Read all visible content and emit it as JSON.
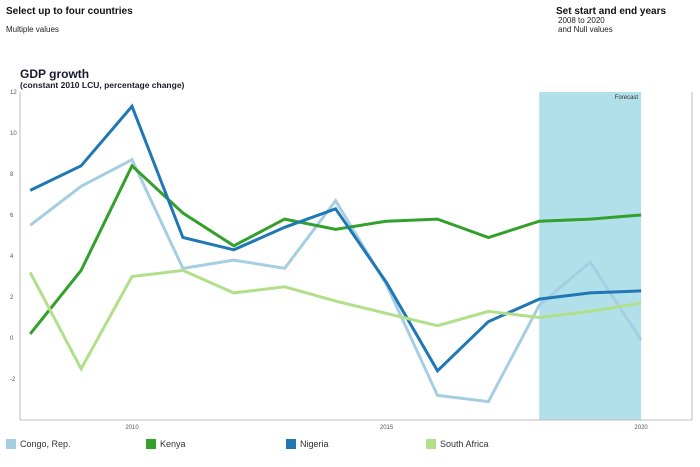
{
  "filters": {
    "countries": {
      "title": "Select up to four countries",
      "value": "Multiple values"
    },
    "years": {
      "title": "Set start and end years",
      "value_line1": "2008 to 2020",
      "value_line2": "and Null values"
    }
  },
  "colors": {
    "congo": "#a6cee3",
    "kenya": "#33a02c",
    "nigeria": "#1f78b4",
    "south_africa": "#b2df8a",
    "forecast": "#b2e0ea",
    "axis": "#bbbbbb",
    "tick_text": "#555555"
  },
  "chart_data": {
    "type": "line",
    "title": "GDP growth",
    "subtitle": "(constant 2010 LCU, percentage change)",
    "xlabel": "",
    "ylabel": "",
    "x": [
      2008,
      2009,
      2010,
      2011,
      2012,
      2013,
      2014,
      2015,
      2016,
      2017,
      2018,
      2019,
      2020
    ],
    "xlim": [
      2007.8,
      2021
    ],
    "ylim": [
      -4,
      12
    ],
    "y_ticks": [
      12,
      10,
      8,
      6,
      4,
      2,
      0,
      -2
    ],
    "y_tick_labels": [
      "12",
      "10",
      "8",
      "6",
      "4",
      "2",
      "0",
      "-2"
    ],
    "x_ticks": [
      2010,
      2015,
      2020
    ],
    "x_tick_labels": [
      "2010",
      "2015",
      "2020"
    ],
    "forecast": {
      "label": "Forecast",
      "start": 2018,
      "end": 2020
    },
    "series": [
      {
        "key": "congo",
        "name": "Congo, Rep.",
        "values": [
          5.5,
          7.4,
          8.7,
          3.4,
          3.8,
          3.4,
          6.7,
          2.6,
          -2.8,
          -3.1,
          1.6,
          3.7,
          -0.1
        ]
      },
      {
        "key": "kenya",
        "name": "Kenya",
        "values": [
          0.2,
          3.3,
          8.4,
          6.1,
          4.5,
          5.8,
          5.3,
          5.7,
          5.8,
          4.9,
          5.7,
          5.8,
          6.0
        ]
      },
      {
        "key": "nigeria",
        "name": "Nigeria",
        "values": [
          7.2,
          8.4,
          11.3,
          4.9,
          4.3,
          5.4,
          6.3,
          2.7,
          -1.6,
          0.8,
          1.9,
          2.2,
          2.3
        ]
      },
      {
        "key": "south_africa",
        "name": "South Africa",
        "values": [
          3.2,
          -1.5,
          3.0,
          3.3,
          2.2,
          2.5,
          1.8,
          1.2,
          0.6,
          1.3,
          1.0,
          1.3,
          1.7
        ]
      }
    ]
  }
}
